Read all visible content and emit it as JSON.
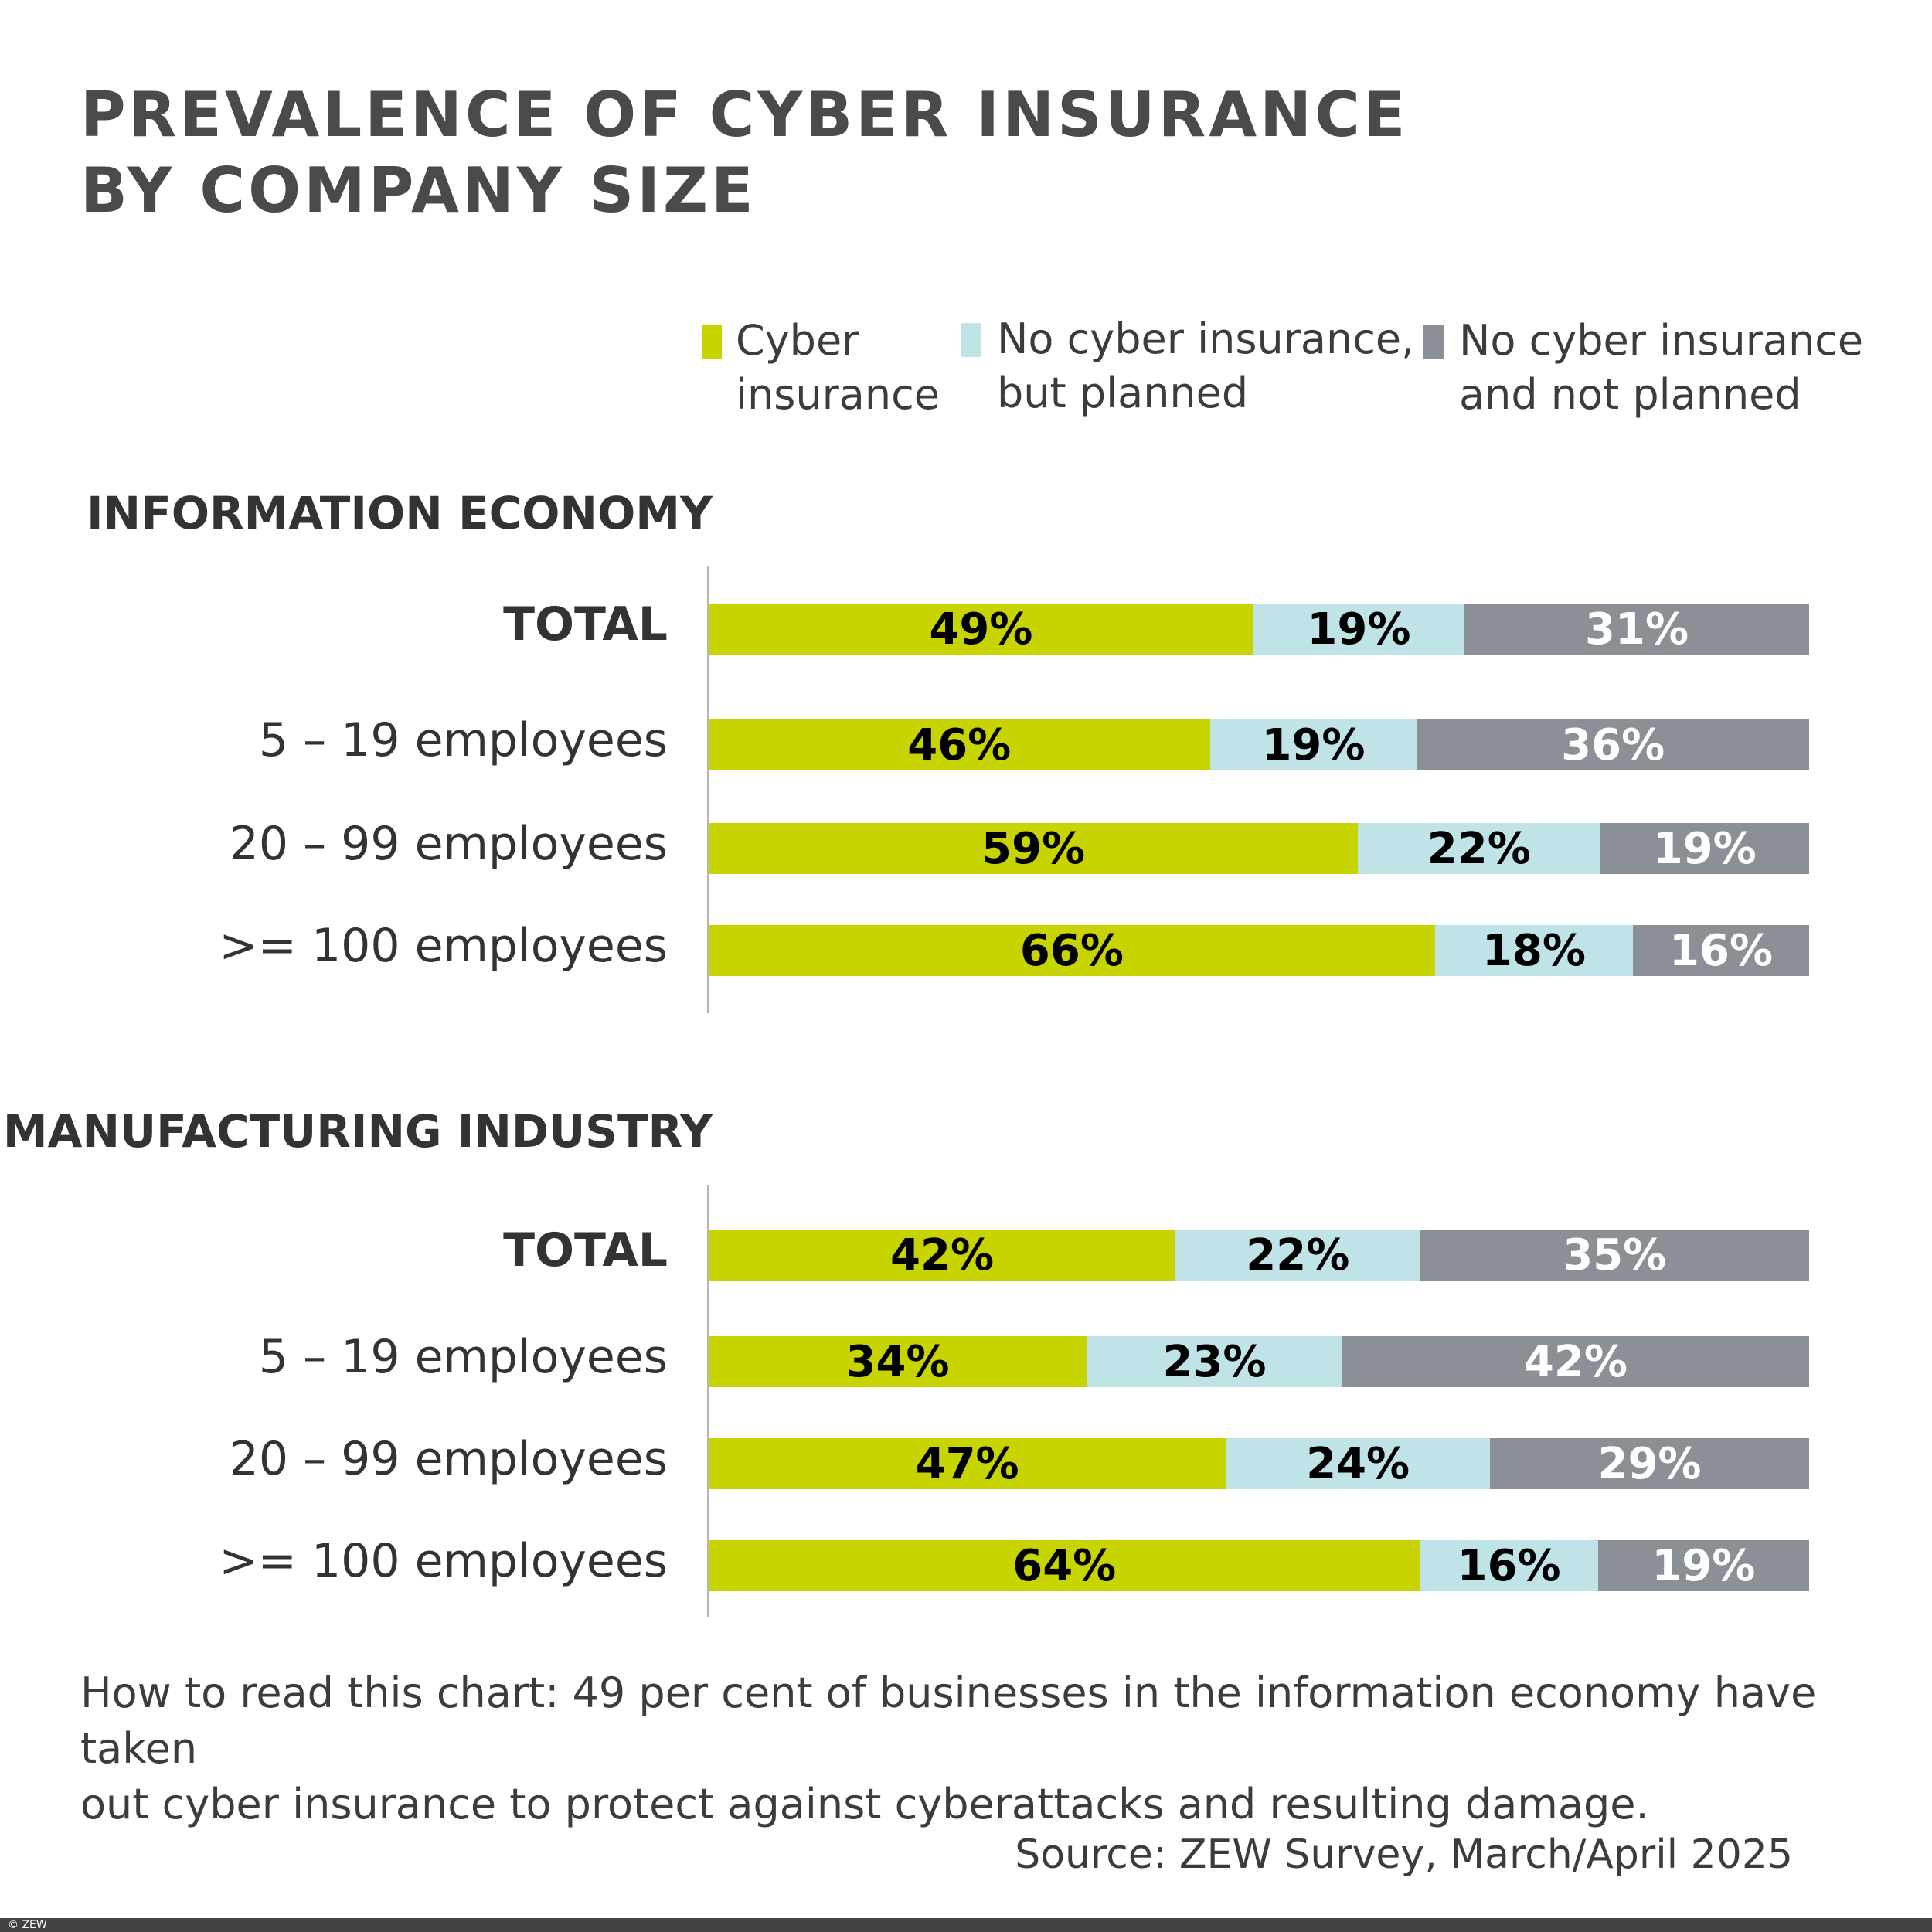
{
  "chart_data": {
    "type": "bar",
    "orientation": "horizontal",
    "stacked": true,
    "title_lines": [
      "PREVALENCE OF CYBER INSURANCE",
      "BY COMPANY SIZE"
    ],
    "legend": [
      {
        "lines": [
          "Cyber",
          "insurance"
        ],
        "color": "#c8d400"
      },
      {
        "lines": [
          "No cyber insurance,",
          "but planned"
        ],
        "color": "#c0e3e8"
      },
      {
        "lines": [
          "No cyber insurance",
          "and not planned"
        ],
        "color": "#8a9096"
      }
    ],
    "label_colors": [
      "#000000",
      "#000000",
      "#ffffff"
    ],
    "panels": [
      {
        "title": "INFORMATION ECONOMY",
        "categories": [
          "TOTAL",
          "5 – 19 employees",
          "20 – 99 employees",
          ">= 100 employees"
        ],
        "values": [
          [
            49,
            19,
            31
          ],
          [
            46,
            19,
            36
          ],
          [
            59,
            22,
            19
          ],
          [
            66,
            18,
            16
          ]
        ]
      },
      {
        "title": "MANUFACTURING INDUSTRY",
        "categories": [
          "TOTAL",
          "5 – 19 employees",
          "20 – 99 employees",
          ">= 100 employees"
        ],
        "values": [
          [
            42,
            22,
            35
          ],
          [
            34,
            23,
            42
          ],
          [
            47,
            24,
            29
          ],
          [
            64,
            16,
            19
          ]
        ]
      }
    ],
    "value_suffix": "%"
  },
  "note": [
    "How to read this chart: 49 per cent of businesses in the information economy have taken",
    "out cyber insurance to protect against cyberattacks and resulting damage."
  ],
  "source": "Source: ZEW Survey, March/April 2025",
  "footer": "© ZEW"
}
